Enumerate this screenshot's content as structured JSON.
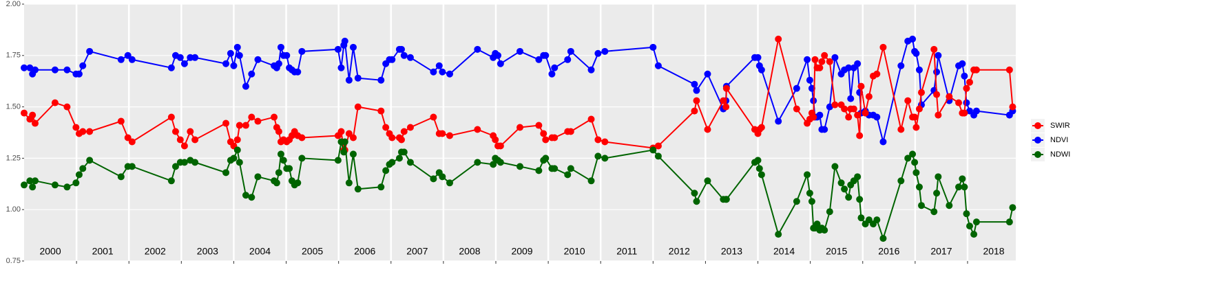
{
  "chart_data": {
    "type": "line",
    "x": [
      2000.0,
      2000.11,
      2000.16,
      2000.21,
      2000.59,
      2000.82,
      2000.99,
      2001.05,
      2001.12,
      2001.25,
      2001.85,
      2001.98,
      2002.06,
      2002.81,
      2002.89,
      2002.98,
      2003.06,
      2003.17,
      2003.26,
      2003.85,
      2003.94,
      2004.0,
      2004.07,
      2004.11,
      2004.23,
      2004.34,
      2004.46,
      2004.77,
      2004.82,
      2004.86,
      2004.9,
      2004.95,
      2005.01,
      2005.06,
      2005.11,
      2005.16,
      2005.22,
      2005.3,
      2005.99,
      2006.05,
      2006.1,
      2006.12,
      2006.2,
      2006.28,
      2006.37,
      2006.81,
      2006.9,
      2006.97,
      2007.02,
      2007.16,
      2007.2,
      2007.25,
      2007.37,
      2007.81,
      2007.92,
      2007.98,
      2008.12,
      2008.65,
      2008.95,
      2008.99,
      2009.04,
      2009.09,
      2009.46,
      2009.82,
      2009.91,
      2009.95,
      2010.07,
      2010.12,
      2010.37,
      2010.43,
      2010.82,
      2010.95,
      2011.08,
      2012.0,
      2012.1,
      2012.79,
      2012.83,
      2013.04,
      2013.34,
      2013.39,
      2013.4,
      2013.94,
      2014.0,
      2014.03,
      2014.07,
      2014.39,
      2014.74,
      2014.94,
      2014.99,
      2015.03,
      2015.06,
      2015.09,
      2015.13,
      2015.18,
      2015.22,
      2015.27,
      2015.37,
      2015.47,
      2015.59,
      2015.65,
      2015.73,
      2015.77,
      2015.83,
      2015.9,
      2015.94,
      2015.97,
      2016.05,
      2016.12,
      2016.2,
      2016.27,
      2016.39,
      2016.73,
      2016.86,
      2016.95,
      2016.99,
      2017.02,
      2017.08,
      2017.12,
      2017.36,
      2017.41,
      2017.44,
      2017.65,
      2017.83,
      2017.9,
      2017.94,
      2017.98,
      2018.04,
      2018.12,
      2018.17,
      2018.8,
      2018.86
    ],
    "series": [
      {
        "name": "SWIR",
        "color": "#ff0000",
        "values": [
          1.47,
          1.44,
          1.46,
          1.42,
          1.52,
          1.5,
          1.4,
          1.37,
          1.38,
          1.38,
          1.43,
          1.35,
          1.33,
          1.45,
          1.38,
          1.34,
          1.31,
          1.38,
          1.34,
          1.42,
          1.33,
          1.31,
          1.34,
          1.41,
          1.41,
          1.45,
          1.43,
          1.45,
          1.4,
          1.38,
          1.33,
          1.34,
          1.33,
          1.34,
          1.36,
          1.38,
          1.36,
          1.35,
          1.36,
          1.38,
          1.29,
          1.29,
          1.37,
          1.35,
          1.5,
          1.48,
          1.4,
          1.37,
          1.35,
          1.35,
          1.34,
          1.38,
          1.4,
          1.45,
          1.37,
          1.37,
          1.36,
          1.39,
          1.36,
          1.34,
          1.31,
          1.31,
          1.4,
          1.41,
          1.37,
          1.34,
          1.35,
          1.35,
          1.38,
          1.38,
          1.44,
          1.34,
          1.33,
          1.3,
          1.31,
          1.48,
          1.53,
          1.39,
          1.53,
          1.5,
          1.59,
          1.39,
          1.37,
          1.39,
          1.4,
          1.83,
          1.49,
          1.42,
          1.44,
          1.47,
          1.45,
          1.73,
          1.69,
          1.69,
          1.72,
          1.75,
          1.72,
          1.51,
          1.51,
          1.49,
          1.45,
          1.49,
          1.49,
          1.46,
          1.36,
          1.6,
          1.47,
          1.55,
          1.65,
          1.66,
          1.79,
          1.39,
          1.53,
          1.45,
          1.45,
          1.4,
          1.49,
          1.57,
          1.78,
          1.56,
          1.46,
          1.55,
          1.52,
          1.47,
          1.47,
          1.59,
          1.62,
          1.68,
          1.68,
          1.68,
          1.5
        ]
      },
      {
        "name": "NDVI",
        "color": "#0000ff",
        "values": [
          1.69,
          1.69,
          1.66,
          1.68,
          1.68,
          1.68,
          1.66,
          1.66,
          1.7,
          1.77,
          1.73,
          1.75,
          1.73,
          1.69,
          1.75,
          1.74,
          1.71,
          1.74,
          1.74,
          1.71,
          1.76,
          1.7,
          1.79,
          1.75,
          1.6,
          1.66,
          1.73,
          1.7,
          1.69,
          1.71,
          1.79,
          1.75,
          1.75,
          1.69,
          1.68,
          1.67,
          1.67,
          1.77,
          1.78,
          1.69,
          1.8,
          1.82,
          1.63,
          1.79,
          1.64,
          1.63,
          1.71,
          1.73,
          1.73,
          1.78,
          1.78,
          1.75,
          1.74,
          1.67,
          1.7,
          1.67,
          1.66,
          1.78,
          1.74,
          1.76,
          1.75,
          1.71,
          1.77,
          1.73,
          1.75,
          1.75,
          1.66,
          1.69,
          1.73,
          1.77,
          1.68,
          1.76,
          1.77,
          1.79,
          1.7,
          1.61,
          1.58,
          1.66,
          1.49,
          1.53,
          1.6,
          1.74,
          1.74,
          1.7,
          1.68,
          1.43,
          1.59,
          1.73,
          1.63,
          1.59,
          1.53,
          1.45,
          1.45,
          1.46,
          1.39,
          1.39,
          1.5,
          1.74,
          1.66,
          1.68,
          1.69,
          1.54,
          1.69,
          1.71,
          1.57,
          1.47,
          1.48,
          1.46,
          1.46,
          1.45,
          1.33,
          1.7,
          1.82,
          1.83,
          1.77,
          1.76,
          1.68,
          1.51,
          1.58,
          1.67,
          1.75,
          1.53,
          1.7,
          1.71,
          1.65,
          1.52,
          1.48,
          1.46,
          1.48,
          1.46,
          1.48
        ]
      },
      {
        "name": "NDWI",
        "color": "#006400",
        "values": [
          1.12,
          1.14,
          1.11,
          1.14,
          1.12,
          1.11,
          1.13,
          1.17,
          1.2,
          1.24,
          1.16,
          1.21,
          1.21,
          1.14,
          1.21,
          1.23,
          1.23,
          1.24,
          1.23,
          1.18,
          1.24,
          1.25,
          1.29,
          1.23,
          1.07,
          1.06,
          1.16,
          1.14,
          1.13,
          1.18,
          1.27,
          1.24,
          1.2,
          1.2,
          1.14,
          1.12,
          1.13,
          1.25,
          1.24,
          1.33,
          1.28,
          1.33,
          1.13,
          1.27,
          1.1,
          1.11,
          1.19,
          1.22,
          1.23,
          1.25,
          1.28,
          1.28,
          1.23,
          1.15,
          1.18,
          1.16,
          1.13,
          1.23,
          1.22,
          1.25,
          1.24,
          1.23,
          1.21,
          1.19,
          1.24,
          1.25,
          1.2,
          1.2,
          1.17,
          1.2,
          1.14,
          1.26,
          1.25,
          1.29,
          1.26,
          1.08,
          1.04,
          1.14,
          1.05,
          1.05,
          1.05,
          1.23,
          1.24,
          1.2,
          1.17,
          0.88,
          1.04,
          1.17,
          1.08,
          1.04,
          0.91,
          0.91,
          0.93,
          0.9,
          0.91,
          0.9,
          0.99,
          1.21,
          1.13,
          1.1,
          1.06,
          1.12,
          1.14,
          1.16,
          1.05,
          0.96,
          0.93,
          0.95,
          0.93,
          0.95,
          0.86,
          1.14,
          1.25,
          1.27,
          1.23,
          1.18,
          1.11,
          1.02,
          0.99,
          1.08,
          1.16,
          1.02,
          1.11,
          1.15,
          1.11,
          0.98,
          0.92,
          0.88,
          0.94,
          0.94,
          1.01
        ]
      }
    ],
    "xlim": [
      2000,
      2018.92
    ],
    "xticks": [
      {
        "value": 2000.5,
        "label": "2000"
      },
      {
        "value": 2001.5,
        "label": "2001"
      },
      {
        "value": 2002.5,
        "label": "2002"
      },
      {
        "value": 2003.5,
        "label": "2003"
      },
      {
        "value": 2004.5,
        "label": "2004"
      },
      {
        "value": 2005.5,
        "label": "2005"
      },
      {
        "value": 2006.5,
        "label": "2006"
      },
      {
        "value": 2007.5,
        "label": "2007"
      },
      {
        "value": 2008.5,
        "label": "2008"
      },
      {
        "value": 2009.5,
        "label": "2009"
      },
      {
        "value": 2010.5,
        "label": "2010"
      },
      {
        "value": 2011.5,
        "label": "2011"
      },
      {
        "value": 2012.5,
        "label": "2012"
      },
      {
        "value": 2013.5,
        "label": "2013"
      },
      {
        "value": 2014.5,
        "label": "2014"
      },
      {
        "value": 2015.5,
        "label": "2015"
      },
      {
        "value": 2016.5,
        "label": "2016"
      },
      {
        "value": 2017.5,
        "label": "2017"
      },
      {
        "value": 2018.5,
        "label": "2018"
      }
    ],
    "ylim": [
      0.75,
      2.0
    ],
    "yticks": [
      {
        "value": 0.75,
        "label": "0.75"
      },
      {
        "value": 1.0,
        "label": "1.00"
      },
      {
        "value": 1.25,
        "label": "1.25"
      },
      {
        "value": 1.5,
        "label": "1.50"
      },
      {
        "value": 1.75,
        "label": "1.75"
      },
      {
        "value": 2.0,
        "label": "2.00"
      }
    ],
    "grid": true,
    "legend": "right"
  }
}
